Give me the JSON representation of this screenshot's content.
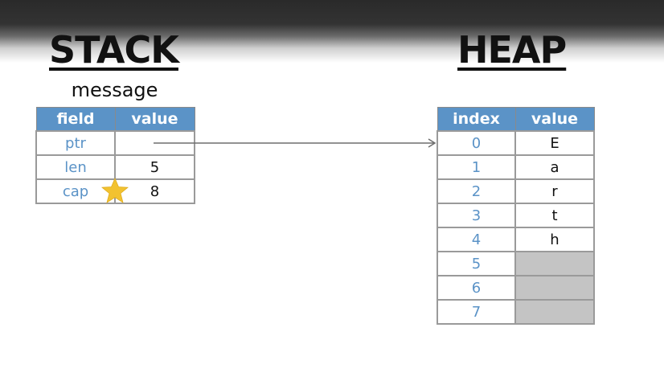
{
  "stack": {
    "title": "STACK",
    "variable_name": "message",
    "columns": [
      "field",
      "value"
    ],
    "rows": [
      {
        "field": "ptr",
        "value": ""
      },
      {
        "field": "len",
        "value": "5"
      },
      {
        "field": "cap",
        "value": "8"
      }
    ]
  },
  "heap": {
    "title": "HEAP",
    "columns": [
      "index",
      "value"
    ],
    "rows": [
      {
        "index": "0",
        "value": "E"
      },
      {
        "index": "1",
        "value": "a"
      },
      {
        "index": "2",
        "value": "r"
      },
      {
        "index": "3",
        "value": "t"
      },
      {
        "index": "4",
        "value": "h"
      },
      {
        "index": "5",
        "value": ""
      },
      {
        "index": "6",
        "value": ""
      },
      {
        "index": "7",
        "value": ""
      }
    ]
  },
  "colors": {
    "header_blue": "#5b93c7",
    "key_text": "#5b93c7",
    "empty_cell": "#c4c4c4",
    "star": "#f2c230",
    "arrow": "#6e6e6e"
  },
  "annotations": {
    "star_icon": "star-icon",
    "arrow_icon": "pointer-arrow-icon"
  }
}
